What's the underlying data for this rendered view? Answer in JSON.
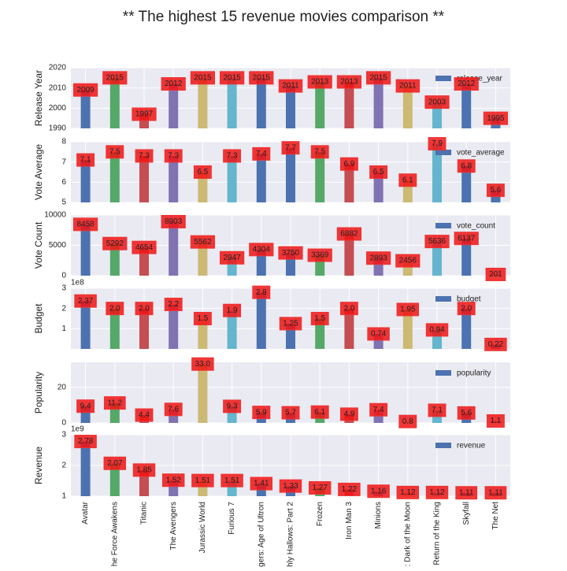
{
  "chart_data": [
    {
      "type": "bar",
      "title": "** The highest 15 revenue movies comparison **",
      "ylabel": "Release Year",
      "series": [
        {
          "name": "release_year",
          "color": "#4c72b0"
        }
      ],
      "values": [
        2009,
        2015,
        1997,
        2012,
        2015,
        2015,
        2015,
        2011,
        2013,
        2013,
        2015,
        2011,
        2003,
        2012,
        1995
      ],
      "value_labels": [
        "2009",
        "2015",
        "1997",
        "2012",
        "2015",
        "2015",
        "2015",
        "2011",
        "2013",
        "2013",
        "2015",
        "2011",
        "2003",
        "2012",
        "1995"
      ],
      "bar_colors": [
        "#4c72b0",
        "#55a868",
        "#c44e52",
        "#8172b2",
        "#ccb974",
        "#64b5cd",
        "#4c72b0",
        "#4c72b0",
        "#55a868",
        "#c44e52",
        "#8172b2",
        "#ccb974",
        "#64b5cd",
        "#4c72b0",
        "#4c72b0"
      ],
      "ylim": [
        1990,
        2020
      ],
      "yticks": [
        1990,
        2000,
        2010,
        2020
      ],
      "grid": true,
      "legend": "upper right"
    },
    {
      "type": "bar",
      "ylabel": "Vote Average",
      "series": [
        {
          "name": "vote_average",
          "color": "#4c72b0"
        }
      ],
      "values": [
        7.1,
        7.5,
        7.3,
        7.3,
        6.5,
        7.3,
        7.4,
        7.7,
        7.5,
        6.9,
        6.5,
        6.1,
        7.9,
        6.8,
        5.6
      ],
      "value_labels": [
        "7.1",
        "7.5",
        "7.3",
        "7.3",
        "6.5",
        "7.3",
        "7.4",
        "7.7",
        "7.5",
        "6.9",
        "6.5",
        "6.1",
        "7.9",
        "6.8",
        "5.6"
      ],
      "bar_colors": [
        "#4c72b0",
        "#55a868",
        "#c44e52",
        "#8172b2",
        "#ccb974",
        "#64b5cd",
        "#4c72b0",
        "#4c72b0",
        "#55a868",
        "#c44e52",
        "#8172b2",
        "#ccb974",
        "#64b5cd",
        "#4c72b0",
        "#4c72b0"
      ],
      "ylim": [
        5,
        8
      ],
      "yticks": [
        5,
        6,
        7,
        8
      ],
      "grid": true,
      "legend": "upper right"
    },
    {
      "type": "bar",
      "ylabel": "Vote Count",
      "series": [
        {
          "name": "vote_count",
          "color": "#4c72b0"
        }
      ],
      "values": [
        8458,
        5292,
        4654,
        8903,
        5562,
        2947,
        4304,
        3750,
        3369,
        6882,
        2893,
        2456,
        5636,
        6137,
        201
      ],
      "value_labels": [
        "8458",
        "5292",
        "4654",
        "8903",
        "5562",
        "2947",
        "4304",
        "3750",
        "3369",
        "6882",
        "2893",
        "2456",
        "5636",
        "6137",
        "201"
      ],
      "bar_colors": [
        "#4c72b0",
        "#55a868",
        "#c44e52",
        "#8172b2",
        "#ccb974",
        "#64b5cd",
        "#4c72b0",
        "#4c72b0",
        "#55a868",
        "#c44e52",
        "#8172b2",
        "#ccb974",
        "#64b5cd",
        "#4c72b0",
        "#4c72b0"
      ],
      "ylim": [
        0,
        10000
      ],
      "yticks": [
        0,
        5000,
        10000
      ],
      "grid": true,
      "legend": "upper right"
    },
    {
      "type": "bar",
      "ylabel": "Budget",
      "offset_text": "1e8",
      "series": [
        {
          "name": "budget",
          "color": "#4c72b0"
        }
      ],
      "values": [
        2.37,
        2.0,
        2.0,
        2.2,
        1.5,
        1.9,
        2.8,
        1.25,
        1.5,
        2.0,
        0.74,
        1.95,
        0.94,
        2.0,
        0.22
      ],
      "value_labels": [
        "2.37",
        "2.0",
        "2.0",
        "2.2",
        "1.5",
        "1.9",
        "2.8",
        "1.25",
        "1.5",
        "2.0",
        "0.74",
        "1.95",
        "0.94",
        "2.0",
        "0.22"
      ],
      "bar_colors": [
        "#4c72b0",
        "#55a868",
        "#c44e52",
        "#8172b2",
        "#ccb974",
        "#64b5cd",
        "#4c72b0",
        "#4c72b0",
        "#55a868",
        "#c44e52",
        "#8172b2",
        "#ccb974",
        "#64b5cd",
        "#4c72b0",
        "#4c72b0"
      ],
      "ylim": [
        0,
        3
      ],
      "yticks": [
        1,
        2,
        3
      ],
      "grid": true,
      "legend": "upper right"
    },
    {
      "type": "bar",
      "ylabel": "Popularity",
      "series": [
        {
          "name": "popularity",
          "color": "#4c72b0"
        }
      ],
      "values": [
        9.4,
        11.2,
        4.4,
        7.6,
        33.0,
        9.3,
        5.9,
        5.7,
        6.1,
        4.9,
        7.4,
        0.8,
        7.1,
        5.6,
        1.1
      ],
      "value_labels": [
        "9.4",
        "11.2",
        "4.4",
        "7.6",
        "33.0",
        "9.3",
        "5.9",
        "5.7",
        "6.1",
        "4.9",
        "7.4",
        "0.8",
        "7.1",
        "5.6",
        "1.1"
      ],
      "bar_colors": [
        "#4c72b0",
        "#55a868",
        "#c44e52",
        "#8172b2",
        "#ccb974",
        "#64b5cd",
        "#4c72b0",
        "#4c72b0",
        "#55a868",
        "#c44e52",
        "#8172b2",
        "#ccb974",
        "#64b5cd",
        "#4c72b0",
        "#4c72b0"
      ],
      "ylim": [
        0,
        34
      ],
      "yticks": [
        0,
        20
      ],
      "grid": true,
      "legend": "upper right"
    },
    {
      "type": "bar",
      "ylabel": "Revenue",
      "offset_text": "1e9",
      "categories": [
        "Avatar",
        "he Force Awakens",
        "Titanic",
        "The Avengers",
        "Jurassic World",
        "Furious 7",
        "gers: Age of Ultron",
        "hly Hallows: Part 2",
        "Frozen",
        "Iron Man 3",
        "Minions",
        ": Dark of the Moon",
        "Return of the King",
        "Skyfall",
        "The Net"
      ],
      "series": [
        {
          "name": "revenue",
          "color": "#4c72b0"
        }
      ],
      "values": [
        2.78,
        2.07,
        1.85,
        1.52,
        1.51,
        1.51,
        1.41,
        1.33,
        1.27,
        1.22,
        1.16,
        1.12,
        1.12,
        1.11,
        1.11
      ],
      "value_labels": [
        "2.78",
        "2.07",
        "1.85",
        "1.52",
        "1.51",
        "1.51",
        "1.41",
        "1.33",
        "1.27",
        "1.22",
        "1.16",
        "1.12",
        "1.12",
        "1.11",
        "1.11"
      ],
      "bar_colors": [
        "#4c72b0",
        "#55a868",
        "#c44e52",
        "#8172b2",
        "#ccb974",
        "#64b5cd",
        "#4c72b0",
        "#4c72b0",
        "#55a868",
        "#c44e52",
        "#8172b2",
        "#ccb974",
        "#64b5cd",
        "#4c72b0",
        "#4c72b0"
      ],
      "ylim": [
        1,
        3
      ],
      "yticks": [
        1,
        2,
        3
      ],
      "grid": true,
      "legend": "upper right"
    }
  ]
}
